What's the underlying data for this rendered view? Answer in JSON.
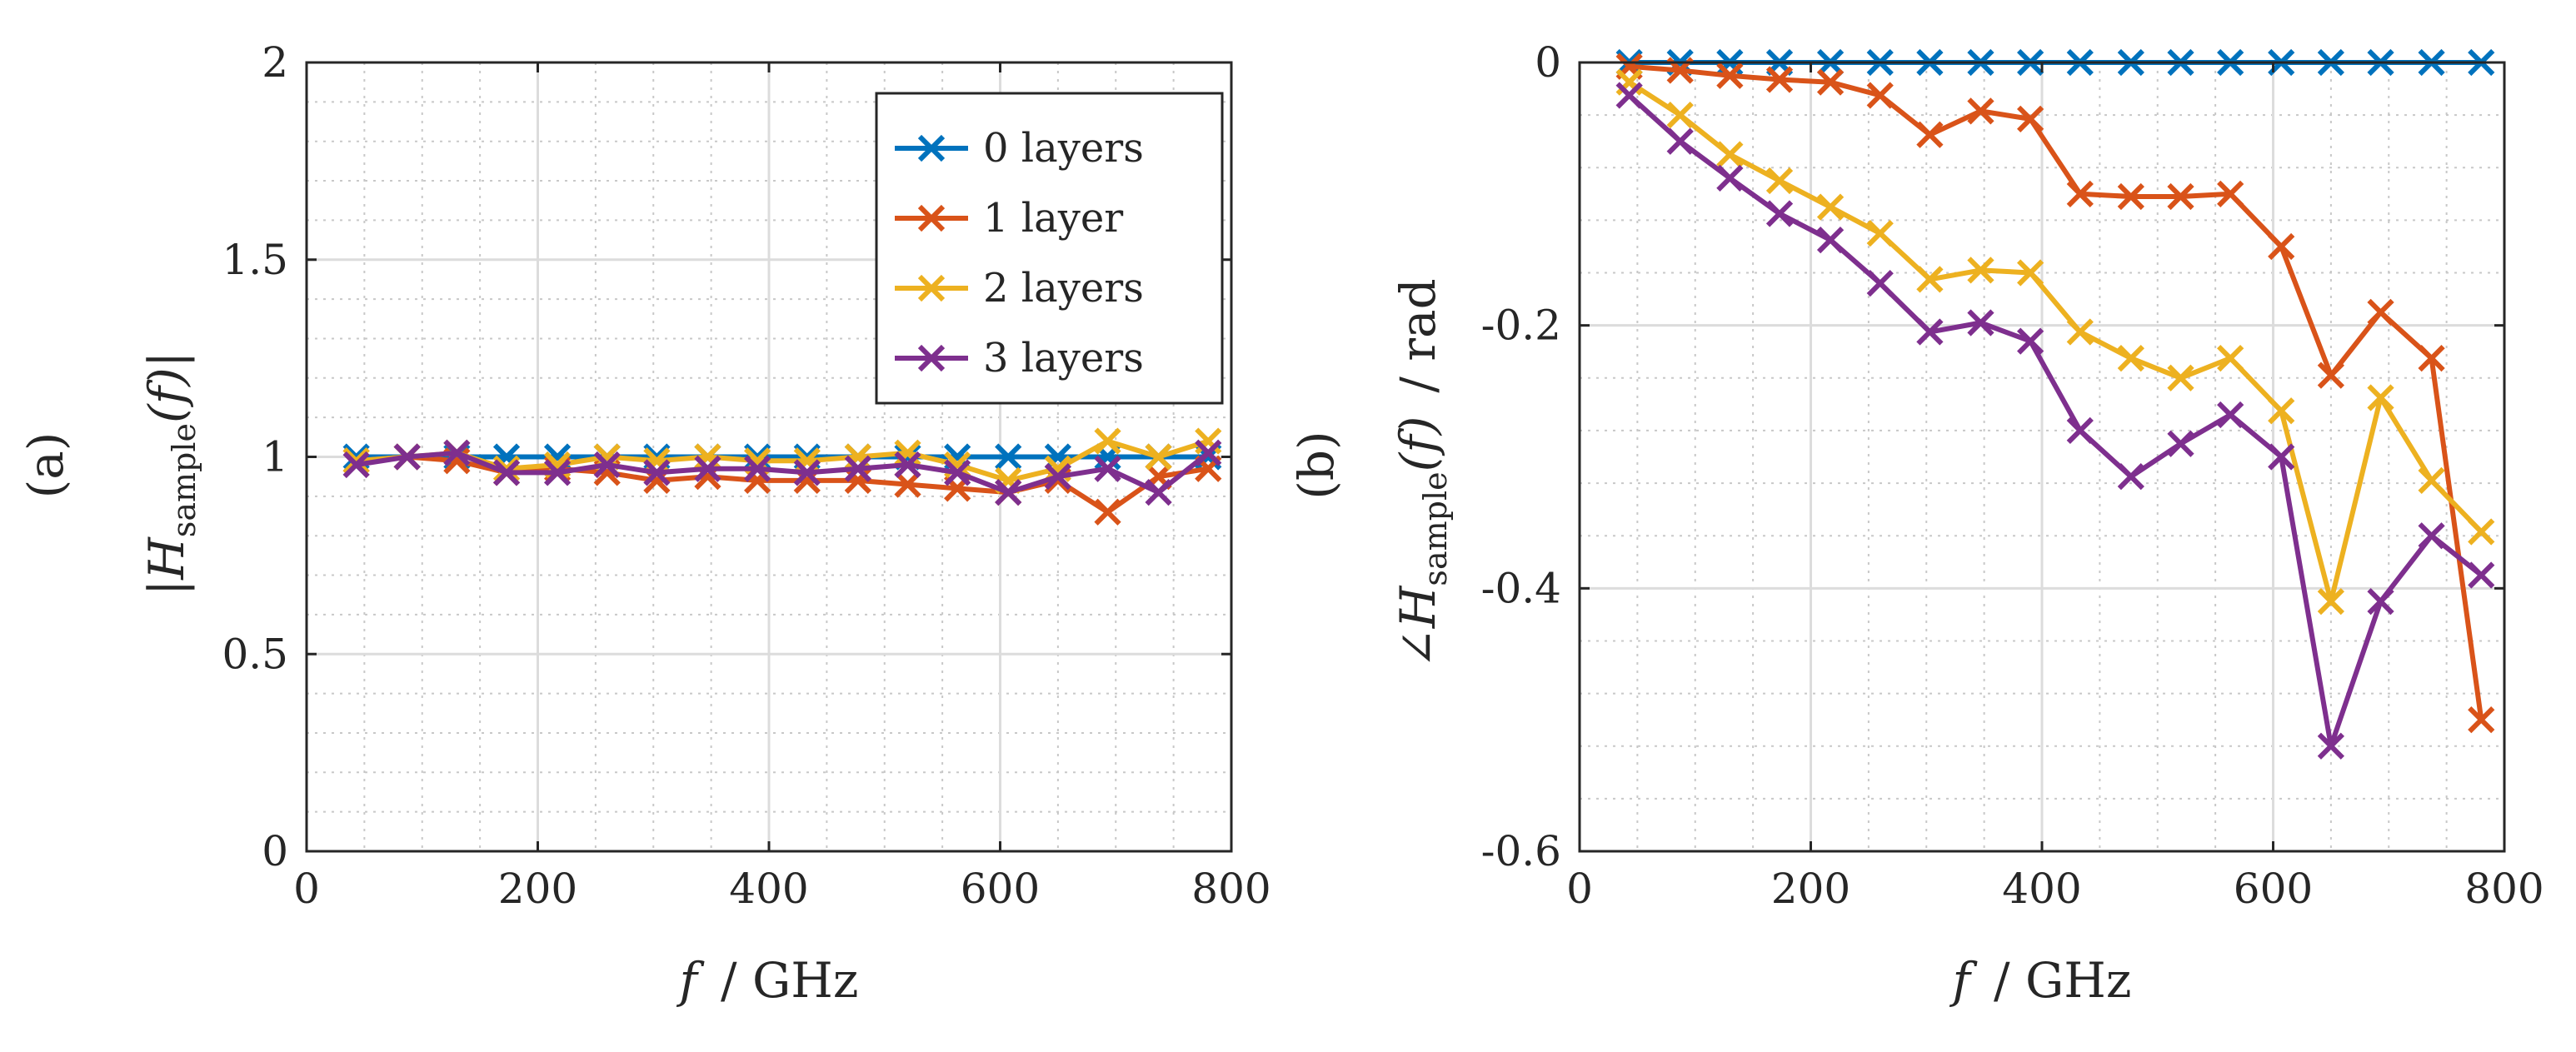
{
  "chart_data": [
    {
      "type": "line",
      "panel_label": "(a)",
      "ylabel": "|H(f)|",
      "ylabel_symbol": "H",
      "ylabel_subscript": "sample",
      "ylabel_arg": "(f)",
      "ylabel_prefix": "|",
      "ylabel_suffix": "|",
      "xlabel": "f / GHz",
      "xlabel_symbol": "f",
      "xlabel_unit": "/ GHz",
      "xlim": [
        0,
        800
      ],
      "ylim": [
        0,
        2
      ],
      "xticks": [
        0,
        200,
        400,
        600,
        800
      ],
      "xtick_labels": [
        "0",
        "200",
        "400",
        "600",
        "800"
      ],
      "yticks": [
        0,
        0.5,
        1,
        1.5,
        2
      ],
      "ytick_labels": [
        "0",
        "0.5",
        "1",
        "1.5",
        "2"
      ],
      "grid": true,
      "minor_grid": true,
      "legend_position": "top-right",
      "x": [
        43,
        87,
        130,
        173,
        217,
        260,
        303,
        347,
        390,
        433,
        477,
        520,
        563,
        607,
        650,
        693,
        737,
        780
      ],
      "series": [
        {
          "name": "0 layers",
          "color": "#0072BD",
          "values": [
            1.0,
            1.0,
            1.0,
            1.0,
            1.0,
            1.0,
            1.0,
            1.0,
            1.0,
            1.0,
            1.0,
            1.0,
            1.0,
            1.0,
            1.0,
            1.0,
            1.0,
            1.0
          ]
        },
        {
          "name": "1 layer",
          "color": "#D95319",
          "values": [
            0.99,
            1.0,
            0.99,
            0.96,
            0.97,
            0.96,
            0.94,
            0.95,
            0.94,
            0.94,
            0.94,
            0.93,
            0.92,
            0.91,
            0.94,
            0.86,
            0.95,
            0.97
          ]
        },
        {
          "name": "2 layers",
          "color": "#EDB120",
          "values": [
            0.99,
            1.0,
            1.01,
            0.97,
            0.98,
            1.0,
            0.99,
            1.0,
            0.99,
            0.99,
            1.0,
            1.01,
            0.98,
            0.94,
            0.97,
            1.04,
            1.0,
            1.04
          ]
        },
        {
          "name": "3 layers",
          "color": "#7E2F8E",
          "values": [
            0.98,
            1.0,
            1.01,
            0.96,
            0.96,
            0.98,
            0.96,
            0.97,
            0.97,
            0.96,
            0.97,
            0.98,
            0.96,
            0.91,
            0.95,
            0.97,
            0.91,
            1.01
          ]
        }
      ]
    },
    {
      "type": "line",
      "panel_label": "(b)",
      "ylabel": "∠H(f) / rad",
      "ylabel_symbol": "∠H",
      "ylabel_subscript": "sample",
      "ylabel_arg": "(f)",
      "ylabel_unit": "/ rad",
      "xlabel": "f / GHz",
      "xlabel_symbol": "f",
      "xlabel_unit": "/ GHz",
      "xlim": [
        0,
        800
      ],
      "ylim": [
        -0.6,
        0
      ],
      "xticks": [
        0,
        200,
        400,
        600,
        800
      ],
      "xtick_labels": [
        "0",
        "200",
        "400",
        "600",
        "800"
      ],
      "yticks": [
        -0.6,
        -0.4,
        -0.2,
        0
      ],
      "ytick_labels": [
        "-0.6",
        "-0.4",
        "-0.2",
        "0"
      ],
      "grid": true,
      "minor_grid": true,
      "legend_position": "none",
      "x": [
        43,
        87,
        130,
        173,
        217,
        260,
        303,
        347,
        390,
        433,
        477,
        520,
        563,
        607,
        650,
        693,
        737,
        780
      ],
      "series": [
        {
          "name": "0 layers",
          "color": "#0072BD",
          "values": [
            0,
            0,
            0,
            0,
            0,
            0,
            0,
            0,
            0,
            0,
            0,
            0,
            0,
            0,
            0,
            0,
            0,
            0
          ]
        },
        {
          "name": "1 layer",
          "color": "#D95319",
          "values": [
            -0.003,
            -0.006,
            -0.01,
            -0.013,
            -0.015,
            -0.025,
            -0.055,
            -0.037,
            -0.043,
            -0.1,
            -0.102,
            -0.102,
            -0.1,
            -0.14,
            -0.238,
            -0.19,
            -0.225,
            -0.5
          ]
        },
        {
          "name": "2 layers",
          "color": "#EDB120",
          "values": [
            -0.015,
            -0.04,
            -0.07,
            -0.09,
            -0.11,
            -0.13,
            -0.165,
            -0.158,
            -0.16,
            -0.205,
            -0.225,
            -0.24,
            -0.225,
            -0.265,
            -0.41,
            -0.255,
            -0.318,
            -0.357
          ]
        },
        {
          "name": "3 layers",
          "color": "#7E2F8E",
          "values": [
            -0.025,
            -0.06,
            -0.088,
            -0.115,
            -0.135,
            -0.168,
            -0.205,
            -0.198,
            -0.212,
            -0.28,
            -0.315,
            -0.29,
            -0.268,
            -0.3,
            -0.52,
            -0.41,
            -0.36,
            -0.39
          ]
        }
      ]
    }
  ]
}
